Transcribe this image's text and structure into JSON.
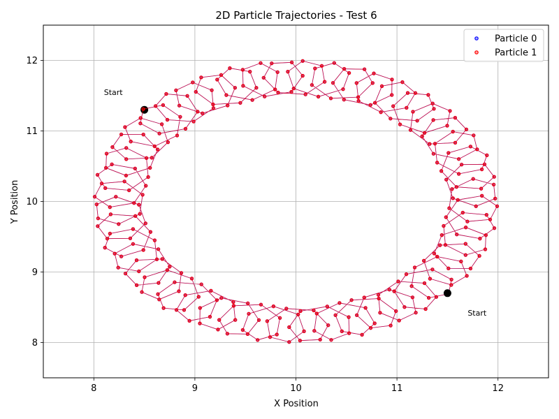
{
  "chart_data": {
    "type": "scatter",
    "title": "2D Particle Trajectories - Test 6",
    "xlabel": "X Position",
    "ylabel": "Y Position",
    "xlim": [
      7.5,
      12.5
    ],
    "ylim": [
      7.5,
      12.5
    ],
    "x_ticks": [
      8,
      9,
      10,
      11,
      12
    ],
    "y_ticks": [
      8,
      9,
      10,
      11,
      12
    ],
    "grid": true,
    "legend_position": "top-right",
    "center": [
      10,
      10
    ],
    "series": [
      {
        "name": "Particle 0",
        "color": "#0000ff",
        "start": [
          8.5,
          11.3
        ],
        "orbit_radius": 1.75,
        "loop_radius": 0.25,
        "loop_count": 48,
        "sample_count": 300
      },
      {
        "name": "Particle 1",
        "color": "#ff0000",
        "start": [
          11.5,
          8.7
        ],
        "orbit_radius": 1.75,
        "loop_radius": 0.25,
        "loop_count": 48,
        "sample_count": 300
      }
    ],
    "annotations": [
      {
        "text": "Start",
        "x": 8.1,
        "y": 11.55
      },
      {
        "text": "Start",
        "x": 11.7,
        "y": 8.42
      }
    ]
  }
}
